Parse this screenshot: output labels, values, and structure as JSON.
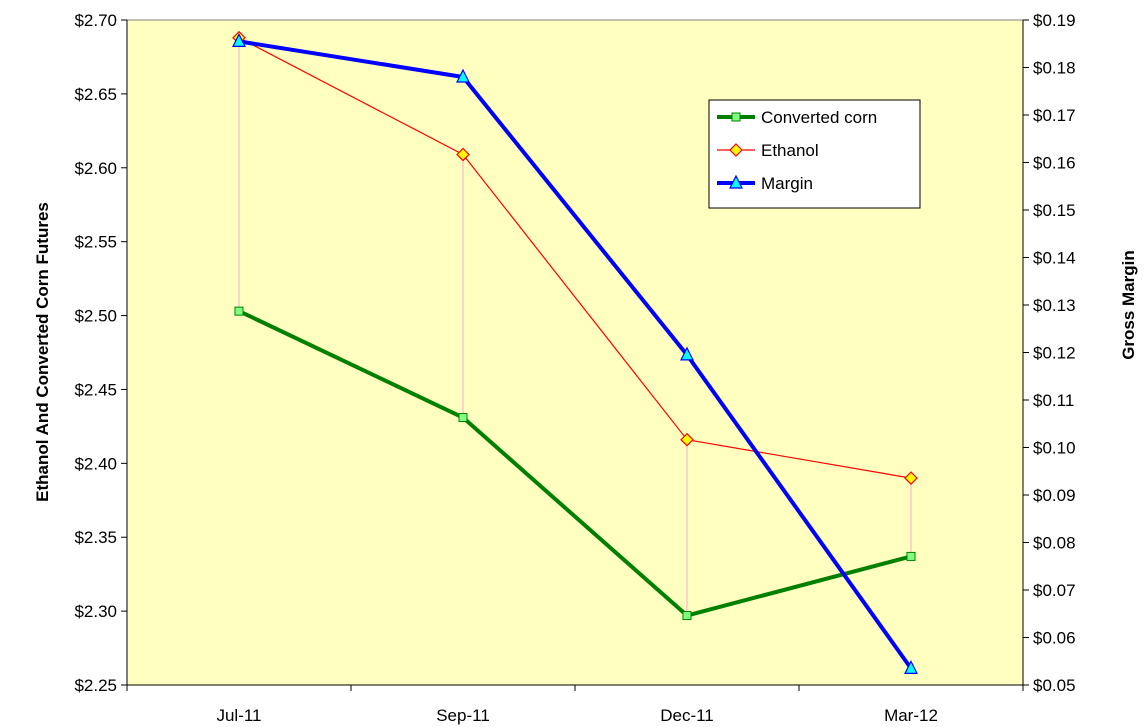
{
  "chart_data": {
    "type": "line",
    "title": "",
    "categories": [
      "Jul-11",
      "Sep-11",
      "Dec-11",
      "Mar-12"
    ],
    "ylabel_left": "Ethanol And Converted Corn Futures",
    "ylabel_right": "Gross Margin",
    "ylim_left": [
      2.25,
      2.7
    ],
    "ylim_right": [
      0.05,
      0.19
    ],
    "yticks_left": [
      "$2.25",
      "$2.30",
      "$2.35",
      "$2.40",
      "$2.45",
      "$2.50",
      "$2.55",
      "$2.60",
      "$2.65",
      "$2.70"
    ],
    "yticks_right": [
      "$0.05",
      "$0.06",
      "$0.07",
      "$0.08",
      "$0.09",
      "$0.10",
      "$0.11",
      "$0.12",
      "$0.13",
      "$0.14",
      "$0.15",
      "$0.16",
      "$0.17",
      "$0.18",
      "$0.19"
    ],
    "series": [
      {
        "name": "Converted corn",
        "axis": "left",
        "values": [
          2.503,
          2.431,
          2.297,
          2.337
        ],
        "color": "#008000",
        "marker": "square"
      },
      {
        "name": "Ethanol",
        "axis": "left",
        "values": [
          2.688,
          2.609,
          2.416,
          2.39
        ],
        "color": "#ff0000",
        "marker": "diamond"
      },
      {
        "name": "Margin",
        "axis": "right",
        "values": [
          0.1855,
          0.178,
          0.1195,
          0.0535
        ],
        "color": "#0000ff",
        "marker": "triangle"
      }
    ],
    "drop_lines": true,
    "drop_line_color": "#ffb6c1",
    "plot_background": "#ffffc0",
    "legend_position": "top-right",
    "grid": false
  }
}
